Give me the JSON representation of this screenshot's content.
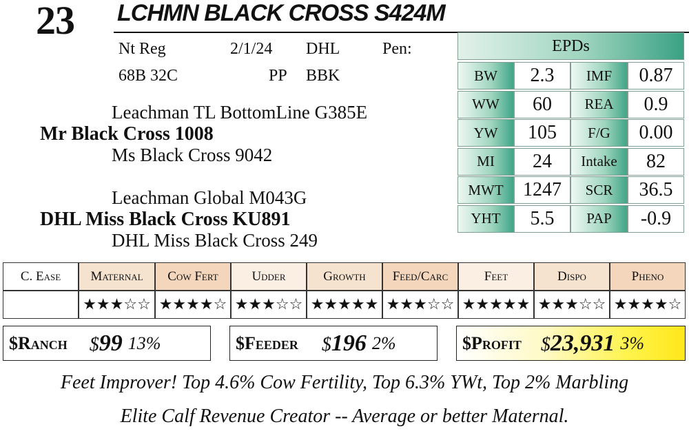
{
  "lot": {
    "number": "23",
    "name": "LCHMN BLACK CROSS S424M"
  },
  "info": {
    "registration": "Nt Reg",
    "birth_date": "2/1/24",
    "breeder": "DHL",
    "pen_label": "Pen:",
    "tattoo": "68B 32C",
    "polled": "PP",
    "color": "BBK"
  },
  "pedigree": {
    "sire_sire": "Leachman TL BottomLine G385E",
    "sire": "Mr Black Cross 1008",
    "sire_dam": "Ms Black Cross 9042",
    "dam_sire": "Leachman Global M043G",
    "dam": "DHL Miss Black Cross KU891",
    "dam_dam": "DHL Miss Black Cross 249"
  },
  "epds": {
    "title": "EPDs",
    "rows": [
      {
        "l1": "BW",
        "v1": "2.3",
        "l2": "IMF",
        "v2": "0.87"
      },
      {
        "l1": "WW",
        "v1": "60",
        "l2": "REA",
        "v2": "0.9"
      },
      {
        "l1": "YW",
        "v1": "105",
        "l2": "F/G",
        "v2": "0.00"
      },
      {
        "l1": "MI",
        "v1": "24",
        "l2": "Intake",
        "v2": "82"
      },
      {
        "l1": "MWT",
        "v1": "1247",
        "l2": "SCR",
        "v2": "36.5"
      },
      {
        "l1": "YHT",
        "v1": "5.5",
        "l2": "PAP",
        "v2": "-0.9"
      }
    ]
  },
  "ratings": {
    "headers": [
      "C. Ease",
      "Maternal",
      "Cow Fert",
      "Udder",
      "Growth",
      "Feed/Carc",
      "Feet",
      "Dispo",
      "Pheno"
    ],
    "stars": [
      "",
      "★★★☆☆",
      "★★★★☆",
      "★★★☆☆",
      "★★★★★",
      "★★★☆☆",
      "★★★★★",
      "★★★☆☆",
      "★★★★☆"
    ],
    "header_colors": [
      "#ffffff",
      "#f6e3cf",
      "#f3d6bc",
      "#fbefe4",
      "#f6e3cf",
      "#f3d6bc",
      "#fbefe4",
      "#f6e3cf",
      "#f3d6bc"
    ]
  },
  "indexes": {
    "ranch": {
      "label": "$Ranch",
      "currency": "$",
      "value": "99",
      "pct": "13%"
    },
    "feeder": {
      "label": "$Feeder",
      "currency": "$",
      "value": "196",
      "pct": "2%"
    },
    "profit": {
      "label": "$Profit",
      "currency": "$",
      "value": "23,931",
      "pct": "3%"
    }
  },
  "comments": {
    "line1": "Feet Improver! Top 4.6% Cow Fertility, Top 6.3% YWt, Top 2% Marbling",
    "line2": "Elite Calf Revenue Creator -- Average or better Maternal."
  }
}
